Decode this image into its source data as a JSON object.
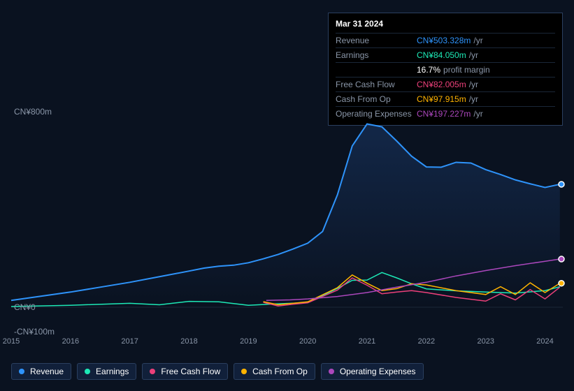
{
  "tooltip": {
    "title": "Mar 31 2024",
    "rows": [
      {
        "label": "Revenue",
        "value": "CN¥503.328m",
        "suffix": "/yr",
        "color": "#2e93fa"
      },
      {
        "label": "Earnings",
        "value": "CN¥84.050m",
        "suffix": "/yr",
        "color": "#1de9b6"
      },
      {
        "label": "",
        "value": "16.7%",
        "suffix": "profit margin",
        "color": "#ffffff"
      },
      {
        "label": "Free Cash Flow",
        "value": "CN¥82.005m",
        "suffix": "/yr",
        "color": "#ec407a"
      },
      {
        "label": "Cash From Op",
        "value": "CN¥97.915m",
        "suffix": "/yr",
        "color": "#ffb300"
      },
      {
        "label": "Operating Expenses",
        "value": "CN¥197.227m",
        "suffix": "/yr",
        "color": "#ab47bc"
      }
    ]
  },
  "chart": {
    "type": "line",
    "background": "#0a1220",
    "grid_color": "#1a2738",
    "x_years": [
      2015,
      2016,
      2017,
      2018,
      2019,
      2020,
      2021,
      2022,
      2023,
      2024
    ],
    "ylim": [
      -100,
      800
    ],
    "y_ticks": [
      {
        "label": "CN¥800m",
        "value": 800
      },
      {
        "label": "CN¥0",
        "value": 0
      },
      {
        "label": "-CN¥100m",
        "value": -100
      }
    ],
    "area_fill": {
      "series": "revenue",
      "from": "#1a3a6b88",
      "to": "#1a3a6b00"
    },
    "series": [
      {
        "key": "revenue",
        "name": "Revenue",
        "color": "#2e93fa",
        "width": 2,
        "points": [
          [
            2015,
            28
          ],
          [
            2015.5,
            45
          ],
          [
            2016,
            62
          ],
          [
            2016.5,
            82
          ],
          [
            2017,
            102
          ],
          [
            2017.5,
            125
          ],
          [
            2018,
            148
          ],
          [
            2018.25,
            160
          ],
          [
            2018.5,
            168
          ],
          [
            2018.75,
            172
          ],
          [
            2019,
            182
          ],
          [
            2019.25,
            198
          ],
          [
            2019.5,
            216
          ],
          [
            2019.75,
            238
          ],
          [
            2020,
            262
          ],
          [
            2020.25,
            310
          ],
          [
            2020.5,
            460
          ],
          [
            2020.75,
            660
          ],
          [
            2021,
            750
          ],
          [
            2021.25,
            738
          ],
          [
            2021.5,
            680
          ],
          [
            2021.75,
            618
          ],
          [
            2022,
            574
          ],
          [
            2022.25,
            573
          ],
          [
            2022.5,
            593
          ],
          [
            2022.75,
            590
          ],
          [
            2023,
            563
          ],
          [
            2023.25,
            543
          ],
          [
            2023.5,
            521
          ],
          [
            2023.75,
            505
          ],
          [
            2024,
            490
          ],
          [
            2024.25,
            503
          ]
        ]
      },
      {
        "key": "earnings",
        "name": "Earnings",
        "color": "#1de9b6",
        "width": 1.5,
        "points": [
          [
            2015,
            3
          ],
          [
            2016,
            8
          ],
          [
            2017,
            16
          ],
          [
            2017.5,
            10
          ],
          [
            2018,
            24
          ],
          [
            2018.5,
            22
          ],
          [
            2019,
            8
          ],
          [
            2019.5,
            14
          ],
          [
            2020,
            19
          ],
          [
            2020.5,
            77
          ],
          [
            2020.75,
            110
          ],
          [
            2021,
            111
          ],
          [
            2021.25,
            142
          ],
          [
            2021.5,
            120
          ],
          [
            2021.75,
            96
          ],
          [
            2022,
            75
          ],
          [
            2022.5,
            67
          ],
          [
            2023,
            62
          ],
          [
            2023.5,
            58
          ],
          [
            2024,
            68
          ],
          [
            2024.25,
            84
          ]
        ]
      },
      {
        "key": "fcf",
        "name": "Free Cash Flow",
        "color": "#ec407a",
        "width": 1.5,
        "points": [
          [
            2019.25,
            20
          ],
          [
            2019.5,
            5
          ],
          [
            2019.75,
            12
          ],
          [
            2020,
            18
          ],
          [
            2020.5,
            70
          ],
          [
            2020.75,
            120
          ],
          [
            2021,
            90
          ],
          [
            2021.25,
            55
          ],
          [
            2021.5,
            62
          ],
          [
            2021.75,
            68
          ],
          [
            2022,
            60
          ],
          [
            2022.5,
            40
          ],
          [
            2023,
            25
          ],
          [
            2023.25,
            55
          ],
          [
            2023.5,
            30
          ],
          [
            2023.75,
            72
          ],
          [
            2024,
            34
          ],
          [
            2024.25,
            82
          ]
        ]
      },
      {
        "key": "cfo",
        "name": "Cash From Op",
        "color": "#ffb300",
        "width": 1.5,
        "points": [
          [
            2019.25,
            23
          ],
          [
            2019.5,
            10
          ],
          [
            2019.75,
            16
          ],
          [
            2020,
            22
          ],
          [
            2020.5,
            80
          ],
          [
            2020.75,
            132
          ],
          [
            2021,
            98
          ],
          [
            2021.25,
            68
          ],
          [
            2021.5,
            76
          ],
          [
            2021.75,
            96
          ],
          [
            2022,
            91
          ],
          [
            2022.5,
            68
          ],
          [
            2023,
            52
          ],
          [
            2023.25,
            84
          ],
          [
            2023.5,
            52
          ],
          [
            2023.75,
            100
          ],
          [
            2024,
            60
          ],
          [
            2024.25,
            98
          ]
        ]
      },
      {
        "key": "opex",
        "name": "Operating Expenses",
        "color": "#ab47bc",
        "width": 1.5,
        "points": [
          [
            2019.3,
            28
          ],
          [
            2019.7,
            30
          ],
          [
            2020,
            34
          ],
          [
            2020.5,
            44
          ],
          [
            2021,
            60
          ],
          [
            2021.5,
            82
          ],
          [
            2022,
            102
          ],
          [
            2022.5,
            128
          ],
          [
            2023,
            150
          ],
          [
            2023.5,
            170
          ],
          [
            2024,
            188
          ],
          [
            2024.25,
            197
          ]
        ]
      }
    ],
    "end_markers": [
      {
        "key": "revenue",
        "color": "#2e93fa",
        "value": 503
      },
      {
        "key": "opex",
        "color": "#ab47bc",
        "value": 197
      },
      {
        "key": "cfo",
        "color": "#ffb300",
        "value": 98
      }
    ]
  },
  "legend": [
    {
      "key": "revenue",
      "label": "Revenue",
      "color": "#2e93fa"
    },
    {
      "key": "earnings",
      "label": "Earnings",
      "color": "#1de9b6"
    },
    {
      "key": "fcf",
      "label": "Free Cash Flow",
      "color": "#ec407a"
    },
    {
      "key": "cfo",
      "label": "Cash From Op",
      "color": "#ffb300"
    },
    {
      "key": "opex",
      "label": "Operating Expenses",
      "color": "#ab47bc"
    }
  ]
}
